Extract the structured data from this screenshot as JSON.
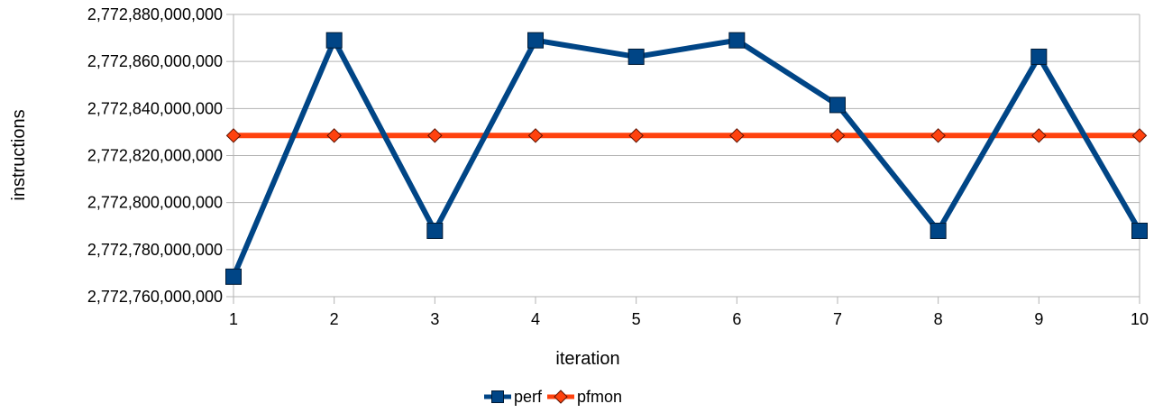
{
  "chart_data": {
    "type": "line",
    "xlabel": "iteration",
    "ylabel": "instructions",
    "x": [
      1,
      2,
      3,
      4,
      5,
      6,
      7,
      8,
      9,
      10
    ],
    "x_tick_labels": [
      "1",
      "2",
      "3",
      "4",
      "5",
      "6",
      "7",
      "8",
      "9",
      "10"
    ],
    "ylim": [
      2772760000000,
      2772880000000
    ],
    "y_tick_values": [
      2772760000000,
      2772780000000,
      2772800000000,
      2772820000000,
      2772840000000,
      2772860000000,
      2772880000000
    ],
    "y_tick_labels": [
      "2,772,760,000,000",
      "2,772,780,000,000",
      "2,772,800,000,000",
      "2,772,820,000,000",
      "2,772,840,000,000",
      "2,772,860,000,000",
      "2,772,880,000,000"
    ],
    "grid": true,
    "legend_position": "bottom",
    "series": [
      {
        "name": "perf",
        "color": "#004586",
        "marker": "square",
        "values": [
          2772768500000,
          2772869000000,
          2772788000000,
          2772869000000,
          2772862000000,
          2772869000000,
          2772841500000,
          2772788000000,
          2772862000000,
          2772788000000
        ]
      },
      {
        "name": "pfmon",
        "color": "#ff420e",
        "marker": "diamond",
        "values": [
          2772828500000,
          2772828500000,
          2772828500000,
          2772828500000,
          2772828500000,
          2772828500000,
          2772828500000,
          2772828500000,
          2772828500000,
          2772828500000
        ]
      }
    ]
  }
}
